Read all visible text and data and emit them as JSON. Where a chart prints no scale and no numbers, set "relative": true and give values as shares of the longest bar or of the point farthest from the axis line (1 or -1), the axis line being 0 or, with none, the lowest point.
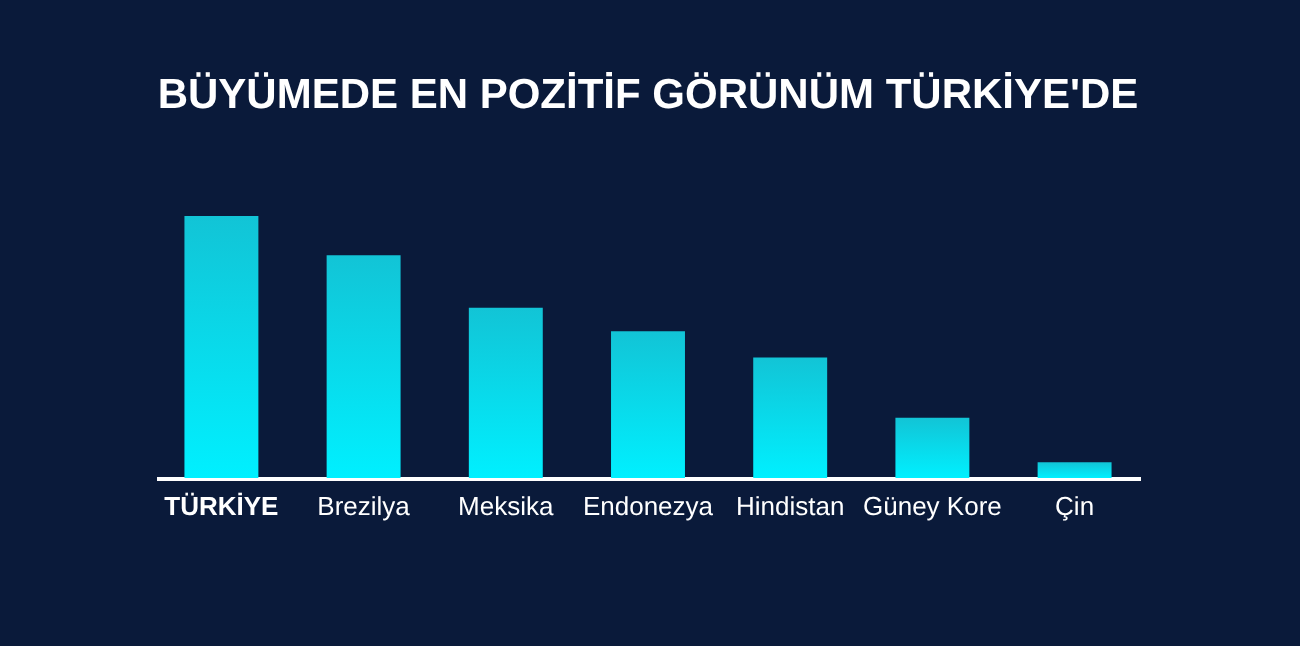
{
  "chart_data": {
    "type": "bar",
    "title": "BÜYÜMEDE EN POZİTİF GÖRÜNÜM TÜRKİYE'DE",
    "relative": true,
    "categories": [
      "TÜRKİYE",
      "Brezilya",
      "Meksika",
      "Endonezya",
      "Hindistan",
      "Güney Kore",
      "Çin"
    ],
    "values": [
      1,
      0.85,
      0.65,
      0.56,
      0.46,
      0.23,
      0.06
    ],
    "color": "#12c4d6"
  }
}
